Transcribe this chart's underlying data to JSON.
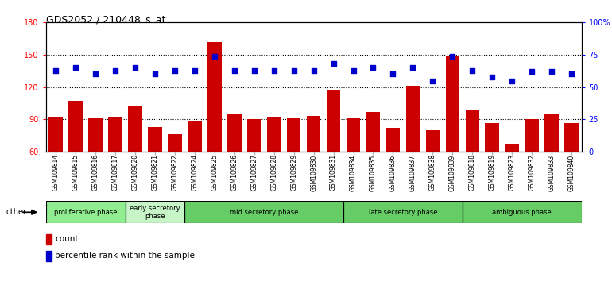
{
  "title": "GDS2052 / 210448_s_at",
  "samples": [
    "GSM109814",
    "GSM109815",
    "GSM109816",
    "GSM109817",
    "GSM109820",
    "GSM109821",
    "GSM109822",
    "GSM109824",
    "GSM109825",
    "GSM109826",
    "GSM109827",
    "GSM109828",
    "GSM109829",
    "GSM109830",
    "GSM109831",
    "GSM109834",
    "GSM109835",
    "GSM109836",
    "GSM109837",
    "GSM109838",
    "GSM109839",
    "GSM109818",
    "GSM109819",
    "GSM109823",
    "GSM109832",
    "GSM109833",
    "GSM109840"
  ],
  "counts": [
    92,
    107,
    91,
    92,
    102,
    83,
    76,
    88,
    162,
    95,
    90,
    92,
    91,
    93,
    117,
    91,
    97,
    82,
    121,
    80,
    149,
    99,
    87,
    67,
    90,
    95,
    87
  ],
  "percentiles": [
    63,
    65,
    60,
    63,
    65,
    60,
    63,
    63,
    74,
    63,
    63,
    63,
    63,
    63,
    68,
    63,
    65,
    60,
    65,
    55,
    74,
    63,
    58,
    55,
    62,
    62,
    60
  ],
  "ylim_left": [
    60,
    180
  ],
  "ylim_right": [
    0,
    100
  ],
  "yticks_left": [
    60,
    90,
    120,
    150,
    180
  ],
  "yticks_right": [
    0,
    25,
    50,
    75,
    100
  ],
  "ytick_labels_right": [
    "0",
    "25",
    "50",
    "75",
    "100%"
  ],
  "bar_color": "#cc0000",
  "dot_color": "#0000cc",
  "phase_groups": [
    {
      "label": "proliferative phase",
      "start": 0,
      "end": 4,
      "color": "#90ee90"
    },
    {
      "label": "early secretory\nphase",
      "start": 4,
      "end": 7,
      "color": "#c8f5c8"
    },
    {
      "label": "mid secretory phase",
      "start": 7,
      "end": 15,
      "color": "#66cc66"
    },
    {
      "label": "late secretory phase",
      "start": 15,
      "end": 21,
      "color": "#66cc66"
    },
    {
      "label": "ambiguous phase",
      "start": 21,
      "end": 27,
      "color": "#66cc66"
    }
  ],
  "phase_boundaries": [
    4,
    7,
    15,
    21
  ],
  "bg_color": "#ffffff",
  "tick_area_bg": "#d0d0d0",
  "plot_bg": "#ffffff"
}
